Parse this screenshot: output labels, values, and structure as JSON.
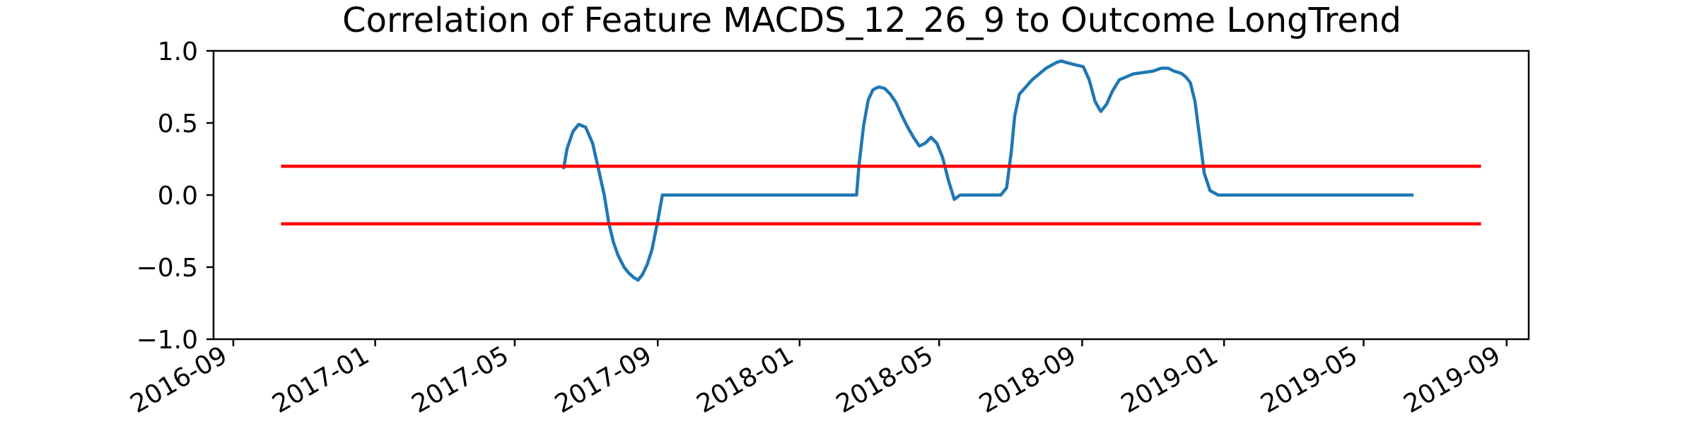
{
  "chart_data": {
    "type": "line",
    "title": "Correlation of Feature MACDS_12_26_9 to Outcome LongTrend",
    "xlabel": "",
    "ylabel": "",
    "ylim": [
      -1.0,
      1.0
    ],
    "xlim": [
      "2016-08-15",
      "2019-09-20"
    ],
    "grid": false,
    "legend": "none",
    "y_ticks": [
      "1.0",
      "0.5",
      "0.0",
      "−0.5",
      "−1.0"
    ],
    "y_tick_values": [
      1.0,
      0.5,
      0.0,
      -0.5,
      -1.0
    ],
    "x_ticks": [
      "2016-09",
      "2017-01",
      "2017-05",
      "2017-09",
      "2018-01",
      "2018-05",
      "2018-09",
      "2019-01",
      "2019-05",
      "2019-09"
    ],
    "x_tick_dates": [
      "2016-09-01",
      "2017-01-01",
      "2017-05-01",
      "2017-09-01",
      "2018-01-01",
      "2018-05-01",
      "2018-09-01",
      "2019-01-01",
      "2019-05-01",
      "2019-09-01"
    ],
    "series": [
      {
        "color": "#1f77b4",
        "x": [
          "2017-06-12",
          "2017-06-15",
          "2017-06-20",
          "2017-06-25",
          "2017-07-01",
          "2017-07-07",
          "2017-07-12",
          "2017-07-17",
          "2017-07-21",
          "2017-07-25",
          "2017-07-29",
          "2017-08-03",
          "2017-08-07",
          "2017-08-11",
          "2017-08-15",
          "2017-08-19",
          "2017-08-23",
          "2017-08-27",
          "2017-09-01",
          "2017-09-05",
          "2017-09-09",
          "2017-09-13",
          "2017-09-17",
          "2017-09-21",
          "2017-09-25",
          "2017-09-29",
          "2017-10-03",
          "2017-10-07",
          "2017-10-10",
          "2017-10-12",
          "2017-10-15",
          "2017-10-22",
          "2017-11-05",
          "2017-12-01",
          "2018-01-01",
          "2018-02-01",
          "2018-02-19",
          "2018-02-21",
          "2018-02-25",
          "2018-03-01",
          "2018-03-05",
          "2018-03-10",
          "2018-03-15",
          "2018-03-20",
          "2018-03-25",
          "2018-03-30",
          "2018-04-04",
          "2018-04-09",
          "2018-04-14",
          "2018-04-19",
          "2018-04-24",
          "2018-04-29",
          "2018-05-04",
          "2018-05-09",
          "2018-05-14",
          "2018-05-19",
          "2018-05-24",
          "2018-05-29",
          "2018-06-03",
          "2018-06-08",
          "2018-06-13",
          "2018-06-18",
          "2018-06-23",
          "2018-06-28",
          "2018-07-02",
          "2018-07-05",
          "2018-07-09",
          "2018-07-20",
          "2018-08-01",
          "2018-08-10",
          "2018-08-14",
          "2018-08-18",
          "2018-08-23",
          "2018-08-28",
          "2018-09-02",
          "2018-09-07",
          "2018-09-12",
          "2018-09-17",
          "2018-09-22",
          "2018-09-27",
          "2018-10-03",
          "2018-10-15",
          "2018-11-01",
          "2018-11-08",
          "2018-11-14",
          "2018-11-19",
          "2018-11-23",
          "2018-11-26",
          "2018-11-29",
          "2018-12-03",
          "2018-12-07",
          "2018-12-11",
          "2018-12-15",
          "2018-12-20",
          "2018-12-27",
          "2019-01-05",
          "2019-01-15",
          "2019-01-25",
          "2019-02-05",
          "2019-02-15",
          "2019-02-25",
          "2019-03-05",
          "2019-03-11",
          "2019-03-16",
          "2019-03-21",
          "2019-03-26",
          "2019-03-31",
          "2019-04-04",
          "2019-04-08",
          "2019-04-12",
          "2019-04-16",
          "2019-04-20",
          "2019-04-25",
          "2019-05-01",
          "2019-05-15",
          "2019-06-01",
          "2019-06-13"
        ],
        "y": [
          0.18,
          0.32,
          0.44,
          0.49,
          0.47,
          0.36,
          0.18,
          0.0,
          -0.2,
          -0.33,
          -0.42,
          -0.5,
          -0.54,
          -0.57,
          -0.59,
          -0.55,
          -0.48,
          -0.38,
          -0.18,
          0.0,
          0.0,
          0.0,
          0.0,
          0.0,
          0.0,
          0.0,
          0.0,
          0.0,
          0.0,
          0.0,
          0.0,
          0.0,
          0.0,
          0.0,
          0.0,
          0.0,
          0.0,
          0.2,
          0.48,
          0.66,
          0.73,
          0.75,
          0.74,
          0.7,
          0.64,
          0.55,
          0.47,
          0.4,
          0.34,
          0.36,
          0.4,
          0.36,
          0.26,
          0.1,
          -0.03,
          0.0,
          0.0,
          0.0,
          0.0,
          0.0,
          0.0,
          0.0,
          0.0,
          0.05,
          0.3,
          0.55,
          0.7,
          0.8,
          0.88,
          0.92,
          0.93,
          0.92,
          0.91,
          0.9,
          0.89,
          0.8,
          0.65,
          0.58,
          0.63,
          0.72,
          0.8,
          0.84,
          0.86,
          0.88,
          0.88,
          0.86,
          0.85,
          0.84,
          0.82,
          0.78,
          0.65,
          0.4,
          0.15,
          0.03,
          0.0,
          0.0,
          0.0,
          0.0,
          0.0,
          0.0,
          0.0,
          0.0,
          0.0,
          0.0,
          0.0,
          0.0,
          0.0,
          0.0,
          0.0,
          0.0,
          0.0,
          0.0,
          0.0,
          0.0,
          0.0,
          0.0,
          0.0
        ]
      },
      {
        "color": "#ff0000",
        "x": [
          "2016-10-12",
          "2019-08-10"
        ],
        "y": [
          0.2,
          0.2
        ]
      },
      {
        "color": "#ff0000",
        "x": [
          "2016-10-12",
          "2019-08-10"
        ],
        "y": [
          -0.2,
          -0.2
        ]
      }
    ]
  }
}
